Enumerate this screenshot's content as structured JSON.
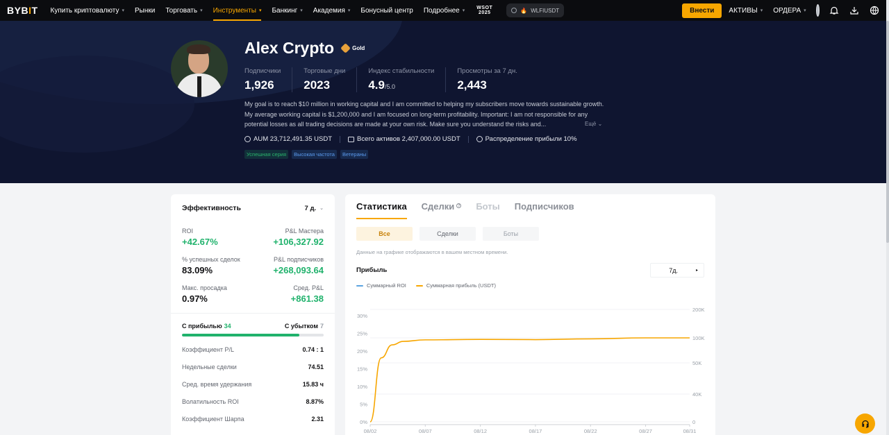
{
  "nav": {
    "logo_main": "BYB",
    "logo_dot": "I",
    "logo_end": "T",
    "items": [
      {
        "label": "Купить криптовалюту",
        "chevron": true,
        "active": false
      },
      {
        "label": "Рынки",
        "chevron": false,
        "active": false
      },
      {
        "label": "Торговать",
        "chevron": true,
        "active": false
      },
      {
        "label": "Инструменты",
        "chevron": true,
        "active": true
      },
      {
        "label": "Банкинг",
        "chevron": true,
        "active": false
      },
      {
        "label": "Академия",
        "chevron": true,
        "active": false
      },
      {
        "label": "Бонусный центр",
        "chevron": false,
        "active": false
      },
      {
        "label": "Подробнее",
        "chevron": true,
        "active": false
      }
    ],
    "wsot_line1": "WSOT",
    "wsot_line2": "2025",
    "search_value": "WLFIUSDT",
    "deposit_label": "Внести",
    "assets_label": "АКТИВЫ",
    "orders_label": "ОРДЕРА",
    "accent": "#f7a600"
  },
  "profile": {
    "name": "Alex Crypto",
    "tier": "Gold",
    "stats": [
      {
        "label": "Подписчики",
        "value": "1,926",
        "suffix": ""
      },
      {
        "label": "Торговые дни",
        "value": "2023",
        "suffix": ""
      },
      {
        "label": "Индекс стабильности",
        "value": "4.9",
        "suffix": "/5.0"
      },
      {
        "label": "Просмотры за 7 дн.",
        "value": "2,443",
        "suffix": ""
      }
    ],
    "bio": "My goal is to reach $10 million in working capital and I am committed to helping my subscribers move towards sustainable growth. My average working capital is $1,200,000 and I am focused on long-term profitability. Important: I am not responsible for any potential losses as all trading decisions are made at your own risk. Make sure you understand the risks and...",
    "more_label": "Ещё",
    "aum": "AUM 23,712,491.35 USDT",
    "total_assets": "Всего активов 2,407,000.00 USDT",
    "profit_share": "Распределение прибыли 10%",
    "tags": [
      "Успешная серия",
      "Высокая частота",
      "Ветераны"
    ]
  },
  "performance": {
    "title": "Эффективность",
    "period": "7 д.",
    "rows": [
      {
        "left_label": "ROI",
        "left_value": "+42.67%",
        "right_label": "P&L Мастера",
        "right_value": "+106,327.92"
      },
      {
        "left_label": "% успешных сделок",
        "left_value": "83.09%",
        "right_label": "P&L подписчиков",
        "right_value": "+268,093.64"
      },
      {
        "left_label": "Макс. просадка",
        "left_value": "0.97%",
        "right_label": "Сред. P&L",
        "right_value": "+861.38"
      }
    ],
    "wins_label": "С прибылью",
    "wins": "34",
    "losses_label": "С убытком",
    "losses": "7",
    "win_fraction": 0.829,
    "metrics": [
      {
        "label": "Коэффициент P/L",
        "value": "0.74 : 1"
      },
      {
        "label": "Недельные сделки",
        "value": "74.51"
      },
      {
        "label": "Сред. время удержания",
        "value": "15.83 ч"
      },
      {
        "label": "Волатильность ROI",
        "value": "8.87%"
      },
      {
        "label": "Коэффициент Шарпа",
        "value": "2.31"
      }
    ]
  },
  "stats_panel": {
    "tabs": [
      {
        "label": "Статистика",
        "state": "active"
      },
      {
        "label": "Сделки",
        "state": "normal"
      },
      {
        "label": "Боты",
        "state": "faded"
      },
      {
        "label": "Подписчиков",
        "state": "normal"
      }
    ],
    "subtabs": [
      {
        "label": "Все",
        "state": "active"
      },
      {
        "label": "Сделки",
        "state": "normal"
      },
      {
        "label": "Боты",
        "state": "disabled"
      }
    ],
    "timezone_note": "Данные на графике отображаются в вашем местном времени.",
    "profit_title": "Прибыль",
    "period": "7д.",
    "legend": [
      {
        "name": "Суммарный ROI",
        "color": "#5aa3e0"
      },
      {
        "name": "Суммарная прибыль (USDT)",
        "color": "#f7a600"
      }
    ]
  },
  "chart_data": {
    "type": "line",
    "x_ticks": [
      "08/02",
      "08/07",
      "08/12",
      "08/17",
      "08/22",
      "08/27",
      "08/31"
    ],
    "y_left_ticks": [
      "0%",
      "5%",
      "10%",
      "15%",
      "20%",
      "25%",
      "30%"
    ],
    "y_right_ticks": [
      "0",
      "40K",
      "50K",
      "100K",
      "200K"
    ],
    "series": [
      {
        "name": "Суммарная прибыль (USDT)",
        "color": "#f7a600",
        "points": [
          {
            "x": "08/02",
            "y": 0
          },
          {
            "x": "08/03",
            "y": 60000
          },
          {
            "x": "08/04",
            "y": 86000
          },
          {
            "x": "08/05",
            "y": 93000
          },
          {
            "x": "08/07",
            "y": 96000
          },
          {
            "x": "08/12",
            "y": 97000
          },
          {
            "x": "08/17",
            "y": 96500
          },
          {
            "x": "08/22",
            "y": 98000
          },
          {
            "x": "08/27",
            "y": 100000
          },
          {
            "x": "08/31",
            "y": 100000
          }
        ]
      }
    ]
  }
}
